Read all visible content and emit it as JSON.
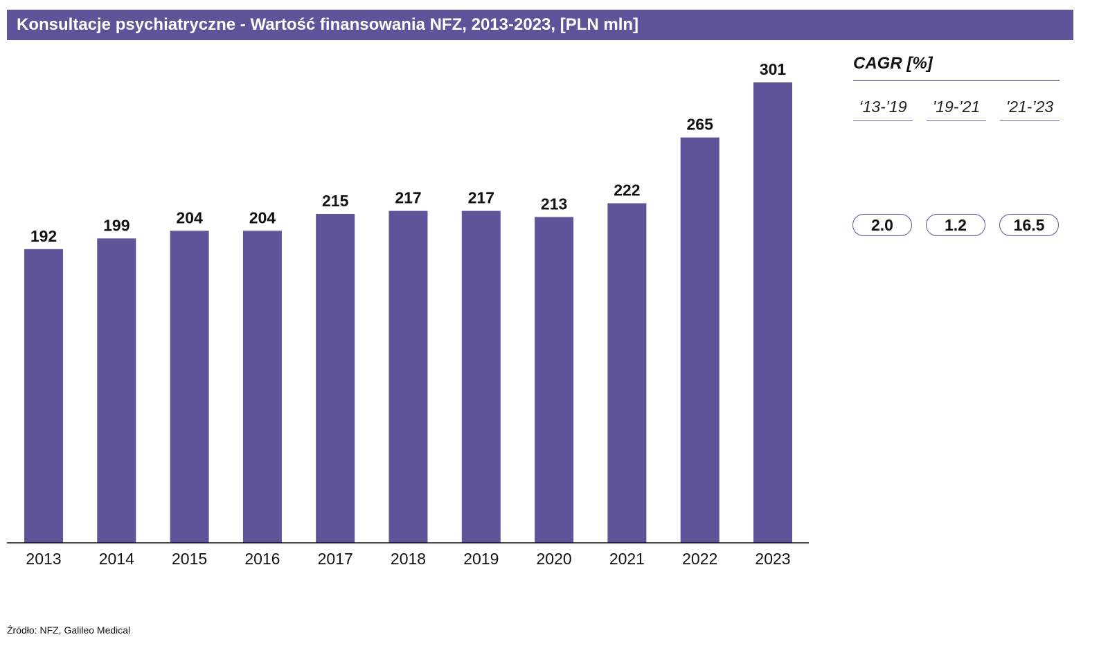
{
  "title": "Konsultacje psychiatryczne -  Wartość finansowania NFZ, 2013-2023, [PLN mln]",
  "colors": {
    "bar": "#5f5399",
    "title_background": "#5f5399",
    "axis": "#111111"
  },
  "chart_data": {
    "type": "bar",
    "categories": [
      "2013",
      "2014",
      "2015",
      "2016",
      "2017",
      "2018",
      "2019",
      "2020",
      "2021",
      "2022",
      "2023"
    ],
    "values": [
      192,
      199,
      204,
      204,
      215,
      217,
      217,
      213,
      222,
      265,
      301
    ],
    "title": "Konsultacje psychiatryczne -  Wartość finansowania NFZ, 2013-2023, [PLN mln]",
    "xlabel": "",
    "ylabel": "",
    "ylim": [
      0,
      301
    ],
    "grid": false,
    "data_labels": true
  },
  "cagr": {
    "title": "CAGR [%]",
    "periods": [
      {
        "label": "‘13-’19",
        "value": "2.0"
      },
      {
        "label": "'19-’21",
        "value": "1.2"
      },
      {
        "label": "'21-’23",
        "value": "16.5"
      }
    ]
  },
  "source": "Źródło: NFZ, Galileo Medical"
}
